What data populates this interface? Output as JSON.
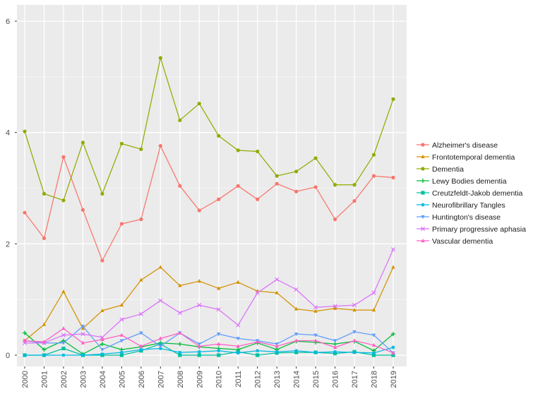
{
  "chart_data": {
    "type": "line",
    "title": "",
    "xlabel": "",
    "ylabel": "",
    "x": [
      "2000",
      "2001",
      "2002",
      "2003",
      "2004",
      "2005",
      "2006",
      "2007",
      "2008",
      "2009",
      "2010",
      "2011",
      "2012",
      "2013",
      "2014",
      "2015",
      "2016",
      "2017",
      "2018",
      "2019"
    ],
    "ylim": [
      0,
      6
    ],
    "y_ticks": [
      "0",
      "2",
      "4",
      "6"
    ],
    "grid": true,
    "legend_position": "right",
    "series": [
      {
        "name": "Alzheimer's disease",
        "color": "#F8766D",
        "marker": "circle",
        "values": [
          2.56,
          2.1,
          3.56,
          2.61,
          1.7,
          2.36,
          2.44,
          3.76,
          3.04,
          2.6,
          2.8,
          3.04,
          2.8,
          3.08,
          2.94,
          3.02,
          2.44,
          2.77,
          3.22,
          3.19
        ]
      },
      {
        "name": "Frontotemporal dementia",
        "color": "#D39200",
        "marker": "triangle",
        "values": [
          0.26,
          0.55,
          1.14,
          0.48,
          0.8,
          0.9,
          1.35,
          1.58,
          1.25,
          1.33,
          1.2,
          1.31,
          1.15,
          1.12,
          0.83,
          0.79,
          0.84,
          0.81,
          0.81,
          1.58
        ]
      },
      {
        "name": "Dementia",
        "color": "#93AA00",
        "marker": "circle",
        "values": [
          4.02,
          2.9,
          2.78,
          3.82,
          2.9,
          3.8,
          3.7,
          5.34,
          4.22,
          4.52,
          3.94,
          3.68,
          3.66,
          3.22,
          3.3,
          3.54,
          3.06,
          3.06,
          3.6,
          4.6
        ]
      },
      {
        "name": "Lewy Bodies dementia",
        "color": "#00BA38",
        "marker": "plus",
        "values": [
          0.4,
          0.1,
          0.26,
          0.02,
          0.2,
          0.1,
          0.15,
          0.22,
          0.2,
          0.15,
          0.12,
          0.1,
          0.22,
          0.1,
          0.25,
          0.23,
          0.2,
          0.25,
          0.08,
          0.38
        ]
      },
      {
        "name": "Creutzfeldt-Jakob dementia",
        "color": "#00C19F",
        "marker": "square",
        "values": [
          0.0,
          0.0,
          0.12,
          0.0,
          0.0,
          0.0,
          0.08,
          0.2,
          0.0,
          0.0,
          0.0,
          0.06,
          0.0,
          0.04,
          0.05,
          0.05,
          0.03,
          0.06,
          0.0,
          0.0
        ]
      },
      {
        "name": "Neurofibrillary Tangles",
        "color": "#00B9E3",
        "marker": "star",
        "values": [
          0.0,
          0.0,
          0.0,
          0.0,
          0.02,
          0.05,
          0.1,
          0.12,
          0.05,
          0.06,
          0.08,
          0.04,
          0.08,
          0.06,
          0.08,
          0.05,
          0.06,
          0.05,
          0.04,
          0.14
        ]
      },
      {
        "name": "Huntington's disease",
        "color": "#619CFF",
        "marker": "triangle-down",
        "values": [
          0.26,
          0.22,
          0.22,
          0.52,
          0.1,
          0.26,
          0.4,
          0.16,
          0.4,
          0.2,
          0.38,
          0.3,
          0.26,
          0.2,
          0.38,
          0.36,
          0.26,
          0.42,
          0.36,
          0.04
        ]
      },
      {
        "name": "Primary progressive aphasia",
        "color": "#DB72FB",
        "marker": "x",
        "values": [
          0.22,
          0.22,
          0.36,
          0.38,
          0.32,
          0.64,
          0.74,
          0.98,
          0.76,
          0.9,
          0.82,
          0.54,
          1.12,
          1.36,
          1.18,
          0.86,
          0.88,
          0.9,
          1.12,
          1.9
        ]
      },
      {
        "name": "Vascular dementia",
        "color": "#FF61C3",
        "marker": "triangle",
        "values": [
          0.26,
          0.24,
          0.48,
          0.22,
          0.28,
          0.36,
          0.16,
          0.3,
          0.4,
          0.16,
          0.2,
          0.16,
          0.24,
          0.16,
          0.26,
          0.26,
          0.14,
          0.26,
          0.18,
          0.04
        ]
      }
    ]
  }
}
